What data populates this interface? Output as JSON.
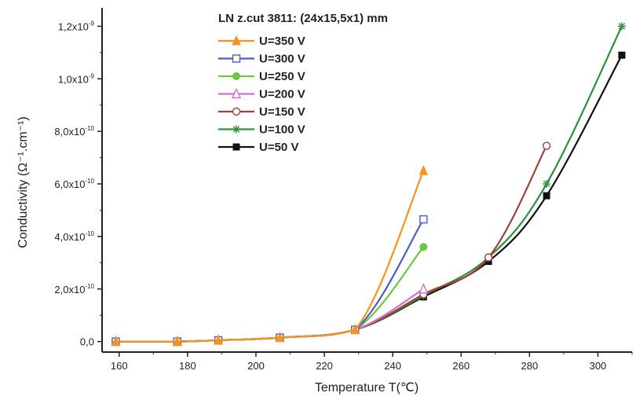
{
  "chart_data": {
    "type": "line",
    "title": "",
    "legend_title": "LN z.cut 3811: (24x15,5x1) mm",
    "xlabel": "Temperature T(℃)",
    "ylabel": "Conductivity (Ω⁻¹.cm⁻¹)",
    "xlim": [
      155,
      310
    ],
    "ylim": [
      -4e-11,
      1.27e-09
    ],
    "x_ticks": [
      160,
      180,
      200,
      220,
      240,
      260,
      280,
      300
    ],
    "x_tick_labels": [
      "160",
      "180",
      "200",
      "220",
      "240",
      "260",
      "280",
      "300"
    ],
    "y_ticks": [
      0,
      2e-10,
      4e-10,
      6e-10,
      8e-10,
      1e-09,
      1.2e-09
    ],
    "y_tick_labels": [
      {
        "mant": "0,0",
        "exp": ""
      },
      {
        "mant": "2,0x10",
        "exp": "-10"
      },
      {
        "mant": "4,0x10",
        "exp": "-10"
      },
      {
        "mant": "6,0x10",
        "exp": "-10"
      },
      {
        "mant": "8,0x10",
        "exp": "-10"
      },
      {
        "mant": "1,0x10",
        "exp": "-9"
      },
      {
        "mant": "1,2x10",
        "exp": "-9"
      }
    ],
    "grid": false,
    "legend_position": "top-center",
    "series": [
      {
        "name": "U=350 V",
        "color": "#f7941d",
        "marker": "triangle-filled",
        "x": [
          159,
          177,
          189,
          207,
          229,
          249
        ],
        "y": [
          0,
          0,
          5e-12,
          1.5e-11,
          4.5e-11,
          6.5e-10
        ]
      },
      {
        "name": "U=300 V",
        "color": "#4a5fc1",
        "marker": "square-open",
        "x": [
          159,
          177,
          189,
          207,
          229,
          249
        ],
        "y": [
          0,
          0,
          5e-12,
          1.5e-11,
          4.5e-11,
          4.65e-10
        ]
      },
      {
        "name": "U=250 V",
        "color": "#6cc644",
        "marker": "circle-filled",
        "x": [
          159,
          177,
          189,
          207,
          229,
          249
        ],
        "y": [
          0,
          0,
          5e-12,
          1.5e-11,
          4.5e-11,
          3.6e-10
        ]
      },
      {
        "name": "U=200 V",
        "color": "#d070d0",
        "marker": "triangle-open",
        "x": [
          159,
          177,
          189,
          207,
          229,
          249
        ],
        "y": [
          0,
          0,
          5e-12,
          1.5e-11,
          4.5e-11,
          2e-10
        ]
      },
      {
        "name": "U=150 V",
        "color": "#a0413a",
        "marker": "circle-open",
        "x": [
          159,
          177,
          189,
          207,
          229,
          249,
          268,
          285
        ],
        "y": [
          0,
          0,
          5e-12,
          1.5e-11,
          4.5e-11,
          1.8e-10,
          3.2e-10,
          7.45e-10
        ]
      },
      {
        "name": "U=100 V",
        "color": "#2f8f3f",
        "marker": "star",
        "x": [
          159,
          177,
          189,
          207,
          229,
          249,
          268,
          285,
          307
        ],
        "y": [
          0,
          0,
          5e-12,
          1.5e-11,
          4.5e-11,
          1.75e-10,
          3.2e-10,
          6e-10,
          1.2e-09
        ]
      },
      {
        "name": "U=50 V",
        "color": "#111111",
        "marker": "square-filled",
        "x": [
          159,
          177,
          189,
          207,
          229,
          249,
          268,
          285,
          307
        ],
        "y": [
          0,
          0,
          5e-12,
          1.5e-11,
          4.5e-11,
          1.7e-10,
          3.05e-10,
          5.55e-10,
          1.09e-09
        ]
      }
    ]
  }
}
